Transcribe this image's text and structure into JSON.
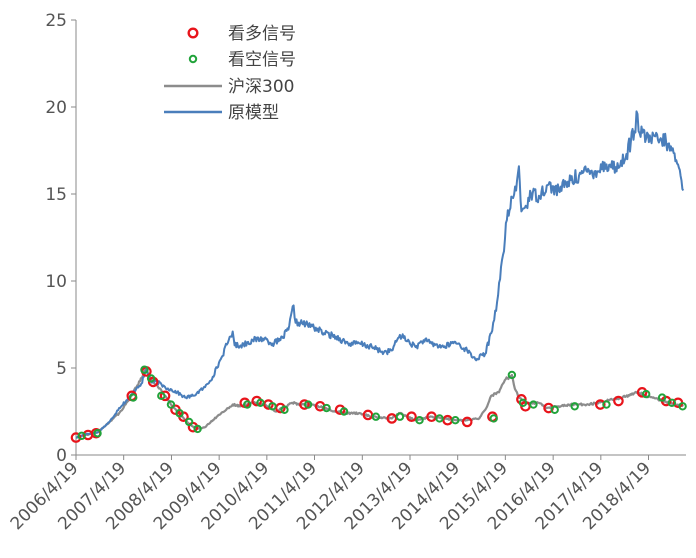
{
  "chart_data": {
    "type": "line",
    "title": "",
    "xlabel": "",
    "ylabel": "",
    "ylim": [
      0,
      25
    ],
    "yticks": [
      0,
      5,
      10,
      15,
      20,
      25
    ],
    "xlim": [
      "2006-04-19",
      "2019-01-31"
    ],
    "xtick_labels": [
      "2006/4/19",
      "2007/4/19",
      "2008/4/19",
      "2009/4/19",
      "2010/4/19",
      "2011/4/19",
      "2012/4/19",
      "2013/4/19",
      "2014/4/19",
      "2015/4/19",
      "2016/4/19",
      "2017/4/19",
      "2018/4/19"
    ],
    "grid": false,
    "legend_position": "top-left",
    "legend": [
      {
        "label": "看多信号",
        "kind": "marker",
        "color": "#e8141b"
      },
      {
        "label": "看空信号",
        "kind": "marker",
        "color": "#21a33a"
      },
      {
        "label": "沪深300",
        "kind": "line",
        "color": "#8c8c8c"
      },
      {
        "label": "原模型",
        "kind": "line",
        "color": "#4a7ebb"
      }
    ],
    "series": [
      {
        "name": "原模型",
        "color": "#4a7ebb",
        "x": [
          "2006-04-19",
          "2006-07-01",
          "2006-10-01",
          "2007-01-01",
          "2007-03-15",
          "2007-06-01",
          "2007-08-01",
          "2007-09-01",
          "2007-10-10",
          "2007-11-15",
          "2008-01-01",
          "2008-03-01",
          "2008-06-01",
          "2008-08-01",
          "2008-10-01",
          "2009-01-01",
          "2009-03-01",
          "2009-05-01",
          "2009-07-01",
          "2009-08-01",
          "2009-08-15",
          "2009-10-01",
          "2010-01-01",
          "2010-04-01",
          "2010-06-01",
          "2010-08-01",
          "2010-10-01",
          "2010-11-10",
          "2010-11-25",
          "2011-01-01",
          "2011-04-01",
          "2011-07-01",
          "2011-10-01",
          "2012-01-01",
          "2012-04-01",
          "2012-07-01",
          "2012-10-01",
          "2012-12-01",
          "2013-02-01",
          "2013-06-01",
          "2013-08-01",
          "2013-10-01",
          "2014-01-01",
          "2014-04-01",
          "2014-07-01",
          "2014-09-01",
          "2014-11-15",
          "2015-01-01",
          "2015-02-15",
          "2015-04-01",
          "2015-05-01",
          "2015-06-10",
          "2015-07-10",
          "2015-08-01",
          "2015-08-20",
          "2015-09-15",
          "2015-11-01",
          "2016-01-01",
          "2016-03-01",
          "2016-06-01",
          "2016-09-01",
          "2016-12-01",
          "2017-03-01",
          "2017-06-01",
          "2017-09-01",
          "2017-11-01",
          "2018-01-01",
          "2018-01-25",
          "2018-02-10",
          "2018-04-01",
          "2018-07-01",
          "2018-09-01",
          "2018-10-15",
          "2018-12-01",
          "2019-01-10"
        ],
        "y": [
          1.0,
          1.2,
          1.3,
          1.9,
          2.7,
          3.3,
          3.9,
          4.1,
          4.9,
          4.2,
          4.2,
          3.9,
          3.6,
          3.3,
          3.4,
          3.9,
          4.5,
          5.5,
          6.6,
          7.1,
          6.3,
          6.3,
          6.6,
          6.7,
          6.4,
          6.6,
          7.2,
          8.6,
          7.6,
          7.6,
          7.4,
          7.0,
          6.8,
          6.4,
          6.4,
          6.2,
          5.9,
          6.0,
          6.9,
          6.2,
          6.6,
          6.4,
          6.2,
          6.5,
          6.0,
          5.5,
          5.8,
          7.0,
          8.8,
          11.5,
          13.5,
          14.8,
          15.2,
          16.6,
          14.0,
          14.2,
          15.0,
          14.9,
          15.5,
          15.2,
          15.8,
          16.2,
          16.3,
          16.7,
          16.5,
          17.3,
          18.6,
          19.6,
          18.5,
          18.2,
          18.1,
          18.0,
          17.5,
          16.7,
          15.2
        ]
      },
      {
        "name": "沪深300",
        "color": "#8c8c8c",
        "x": [
          "2006-04-19",
          "2006-07-01",
          "2006-10-01",
          "2007-01-01",
          "2007-03-15",
          "2007-06-01",
          "2007-08-01",
          "2007-10-10",
          "2007-11-15",
          "2008-01-01",
          "2008-03-01",
          "2008-06-01",
          "2008-09-01",
          "2008-11-01",
          "2009-01-01",
          "2009-04-01",
          "2009-08-01",
          "2009-10-01",
          "2010-01-01",
          "2010-04-01",
          "2010-07-01",
          "2010-11-01",
          "2011-01-01",
          "2011-04-01",
          "2011-07-01",
          "2011-10-01",
          "2012-01-01",
          "2012-04-01",
          "2012-07-01",
          "2012-12-01",
          "2013-02-01",
          "2013-06-01",
          "2013-10-01",
          "2014-01-01",
          "2014-04-01",
          "2014-07-01",
          "2014-10-01",
          "2014-12-01",
          "2015-01-01",
          "2015-03-01",
          "2015-04-15",
          "2015-06-08",
          "2015-07-01",
          "2015-08-01",
          "2015-09-15",
          "2015-11-01",
          "2016-01-01",
          "2016-03-01",
          "2016-06-01",
          "2016-09-01",
          "2017-01-01",
          "2017-04-01",
          "2017-07-01",
          "2017-10-01",
          "2018-01-25",
          "2018-04-01",
          "2018-07-01",
          "2018-10-01",
          "2019-01-10"
        ],
        "y": [
          1.0,
          1.15,
          1.3,
          1.9,
          2.4,
          3.2,
          4.0,
          5.0,
          4.3,
          4.0,
          3.4,
          2.5,
          1.8,
          1.5,
          1.6,
          2.2,
          2.9,
          2.8,
          3.0,
          2.9,
          2.5,
          3.0,
          2.9,
          2.9,
          2.7,
          2.5,
          2.4,
          2.4,
          2.2,
          2.1,
          2.4,
          2.0,
          2.2,
          2.1,
          2.0,
          2.0,
          2.1,
          2.8,
          3.4,
          3.6,
          4.3,
          4.6,
          3.8,
          3.3,
          3.0,
          3.0,
          3.0,
          2.7,
          2.8,
          2.9,
          2.9,
          3.0,
          3.2,
          3.3,
          3.6,
          3.4,
          3.2,
          3.0,
          2.8
        ]
      }
    ],
    "signals": {
      "bullish": [
        {
          "x": "2006-04-19",
          "y": 1.0
        },
        {
          "x": "2006-07-20",
          "y": 1.15
        },
        {
          "x": "2006-09-20",
          "y": 1.25
        },
        {
          "x": "2007-06-20",
          "y": 3.4
        },
        {
          "x": "2007-10-10",
          "y": 4.8
        },
        {
          "x": "2007-12-01",
          "y": 4.2
        },
        {
          "x": "2008-03-01",
          "y": 3.4
        },
        {
          "x": "2008-05-20",
          "y": 2.6
        },
        {
          "x": "2008-07-20",
          "y": 2.2
        },
        {
          "x": "2008-10-01",
          "y": 1.6
        },
        {
          "x": "2009-11-01",
          "y": 3.0
        },
        {
          "x": "2010-02-01",
          "y": 3.1
        },
        {
          "x": "2010-05-01",
          "y": 2.9
        },
        {
          "x": "2010-08-01",
          "y": 2.7
        },
        {
          "x": "2011-02-01",
          "y": 2.9
        },
        {
          "x": "2011-06-01",
          "y": 2.8
        },
        {
          "x": "2011-11-01",
          "y": 2.6
        },
        {
          "x": "2012-06-01",
          "y": 2.3
        },
        {
          "x": "2012-12-01",
          "y": 2.1
        },
        {
          "x": "2013-05-01",
          "y": 2.2
        },
        {
          "x": "2013-10-01",
          "y": 2.2
        },
        {
          "x": "2014-02-01",
          "y": 2.0
        },
        {
          "x": "2014-07-01",
          "y": 1.9
        },
        {
          "x": "2015-01-10",
          "y": 2.2
        },
        {
          "x": "2015-08-20",
          "y": 3.2
        },
        {
          "x": "2015-09-20",
          "y": 2.8
        },
        {
          "x": "2016-03-15",
          "y": 2.7
        },
        {
          "x": "2017-04-15",
          "y": 2.9
        },
        {
          "x": "2017-09-01",
          "y": 3.1
        },
        {
          "x": "2018-03-01",
          "y": 3.6
        },
        {
          "x": "2018-09-01",
          "y": 3.1
        },
        {
          "x": "2018-12-01",
          "y": 3.0
        }
      ],
      "bearish": [
        {
          "x": "2006-06-01",
          "y": 1.1
        },
        {
          "x": "2006-10-01",
          "y": 1.25
        },
        {
          "x": "2007-07-01",
          "y": 3.3
        },
        {
          "x": "2007-09-25",
          "y": 4.9
        },
        {
          "x": "2007-11-15",
          "y": 4.4
        },
        {
          "x": "2008-02-01",
          "y": 3.4
        },
        {
          "x": "2008-04-15",
          "y": 2.9
        },
        {
          "x": "2008-06-20",
          "y": 2.4
        },
        {
          "x": "2008-09-01",
          "y": 1.9
        },
        {
          "x": "2008-11-05",
          "y": 1.5
        },
        {
          "x": "2009-11-20",
          "y": 2.9
        },
        {
          "x": "2010-03-01",
          "y": 3.0
        },
        {
          "x": "2010-06-01",
          "y": 2.8
        },
        {
          "x": "2010-09-01",
          "y": 2.6
        },
        {
          "x": "2011-03-01",
          "y": 2.9
        },
        {
          "x": "2011-07-20",
          "y": 2.7
        },
        {
          "x": "2011-12-01",
          "y": 2.5
        },
        {
          "x": "2012-08-01",
          "y": 2.2
        },
        {
          "x": "2013-02-01",
          "y": 2.2
        },
        {
          "x": "2013-07-01",
          "y": 2.0
        },
        {
          "x": "2013-12-01",
          "y": 2.1
        },
        {
          "x": "2014-04-01",
          "y": 2.0
        },
        {
          "x": "2015-01-20",
          "y": 2.1
        },
        {
          "x": "2015-06-08",
          "y": 4.6
        },
        {
          "x": "2015-09-01",
          "y": 3.0
        },
        {
          "x": "2015-11-20",
          "y": 2.9
        },
        {
          "x": "2016-05-01",
          "y": 2.6
        },
        {
          "x": "2016-10-01",
          "y": 2.8
        },
        {
          "x": "2017-06-01",
          "y": 2.9
        },
        {
          "x": "2018-04-01",
          "y": 3.5
        },
        {
          "x": "2018-08-01",
          "y": 3.3
        },
        {
          "x": "2018-10-15",
          "y": 3.0
        },
        {
          "x": "2019-01-05",
          "y": 2.8
        }
      ]
    }
  }
}
